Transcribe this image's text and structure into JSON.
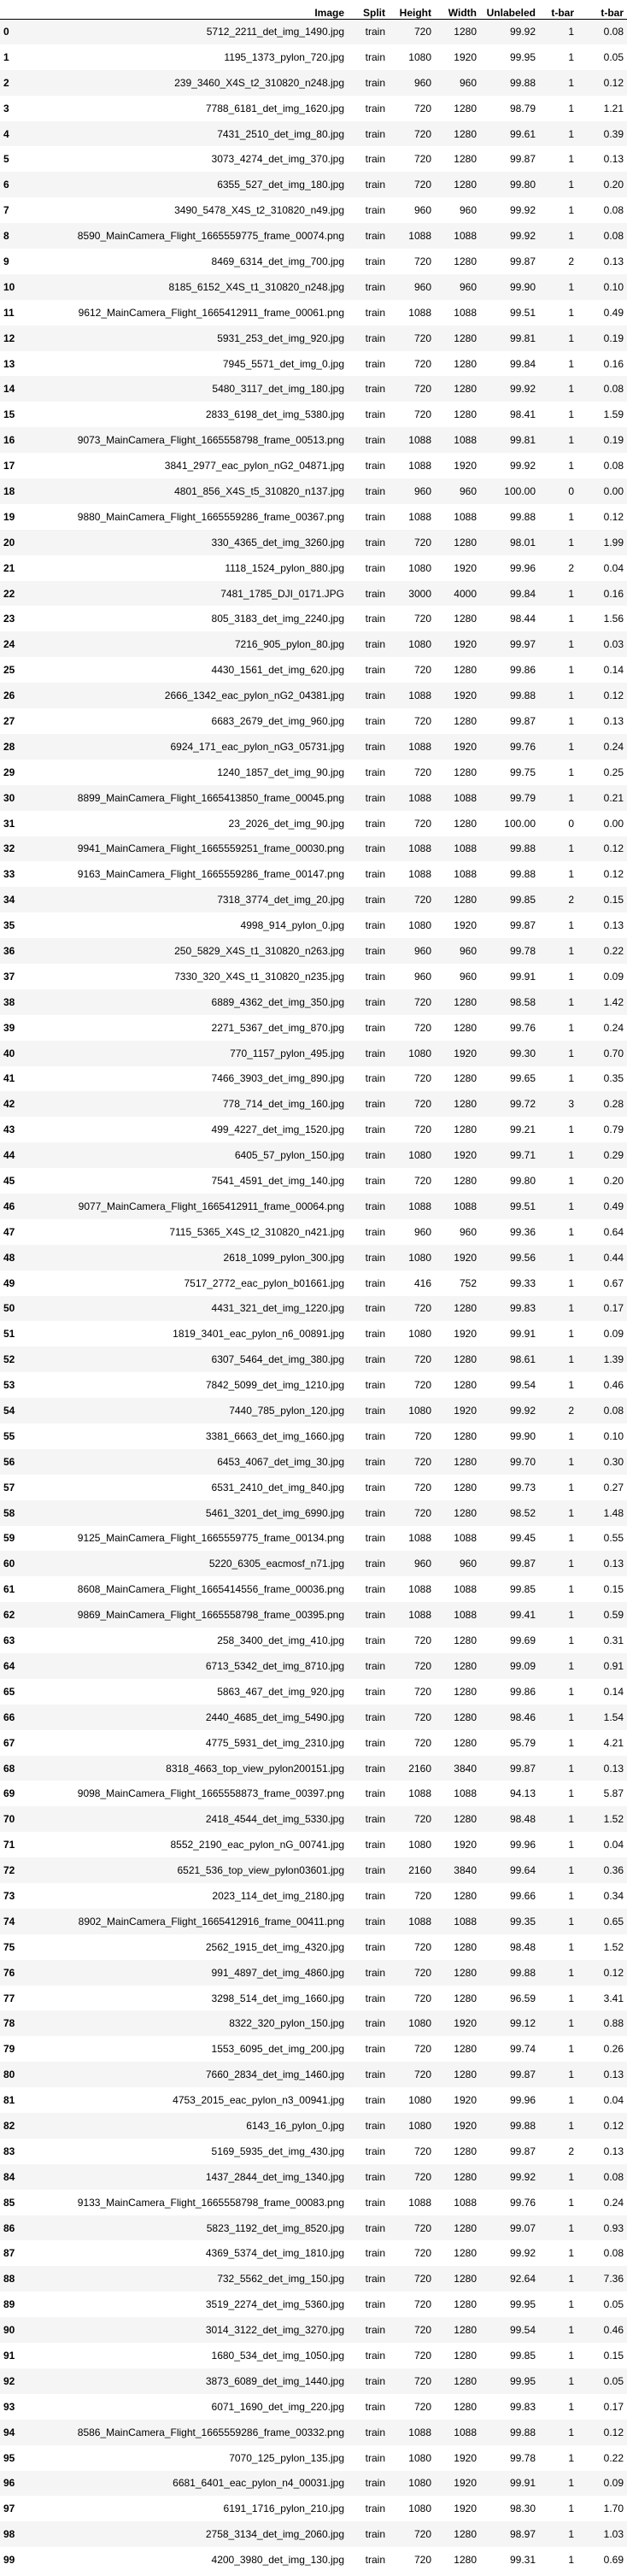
{
  "columns": [
    "",
    "Image",
    "Split",
    "Height",
    "Width",
    "Unlabeled",
    "t-bar",
    "t-bar"
  ],
  "rows": [
    [
      "0",
      "5712_2211_det_img_1490.jpg",
      "train",
      "720",
      "1280",
      "99.92",
      "1",
      "0.08"
    ],
    [
      "1",
      "1195_1373_pylon_720.jpg",
      "train",
      "1080",
      "1920",
      "99.95",
      "1",
      "0.05"
    ],
    [
      "2",
      "239_3460_X4S_t2_310820_n248.jpg",
      "train",
      "960",
      "960",
      "99.88",
      "1",
      "0.12"
    ],
    [
      "3",
      "7788_6181_det_img_1620.jpg",
      "train",
      "720",
      "1280",
      "98.79",
      "1",
      "1.21"
    ],
    [
      "4",
      "7431_2510_det_img_80.jpg",
      "train",
      "720",
      "1280",
      "99.61",
      "1",
      "0.39"
    ],
    [
      "5",
      "3073_4274_det_img_370.jpg",
      "train",
      "720",
      "1280",
      "99.87",
      "1",
      "0.13"
    ],
    [
      "6",
      "6355_527_det_img_180.jpg",
      "train",
      "720",
      "1280",
      "99.80",
      "1",
      "0.20"
    ],
    [
      "7",
      "3490_5478_X4S_t2_310820_n49.jpg",
      "train",
      "960",
      "960",
      "99.92",
      "1",
      "0.08"
    ],
    [
      "8",
      "8590_MainCamera_Flight_1665559775_frame_00074.png",
      "train",
      "1088",
      "1088",
      "99.92",
      "1",
      "0.08"
    ],
    [
      "9",
      "8469_6314_det_img_700.jpg",
      "train",
      "720",
      "1280",
      "99.87",
      "2",
      "0.13"
    ],
    [
      "10",
      "8185_6152_X4S_t1_310820_n248.jpg",
      "train",
      "960",
      "960",
      "99.90",
      "1",
      "0.10"
    ],
    [
      "11",
      "9612_MainCamera_Flight_1665412911_frame_00061.png",
      "train",
      "1088",
      "1088",
      "99.51",
      "1",
      "0.49"
    ],
    [
      "12",
      "5931_253_det_img_920.jpg",
      "train",
      "720",
      "1280",
      "99.81",
      "1",
      "0.19"
    ],
    [
      "13",
      "7945_5571_det_img_0.jpg",
      "train",
      "720",
      "1280",
      "99.84",
      "1",
      "0.16"
    ],
    [
      "14",
      "5480_3117_det_img_180.jpg",
      "train",
      "720",
      "1280",
      "99.92",
      "1",
      "0.08"
    ],
    [
      "15",
      "2833_6198_det_img_5380.jpg",
      "train",
      "720",
      "1280",
      "98.41",
      "1",
      "1.59"
    ],
    [
      "16",
      "9073_MainCamera_Flight_1665558798_frame_00513.png",
      "train",
      "1088",
      "1088",
      "99.81",
      "1",
      "0.19"
    ],
    [
      "17",
      "3841_2977_eac_pylon_nG2_04871.jpg",
      "train",
      "1088",
      "1920",
      "99.92",
      "1",
      "0.08"
    ],
    [
      "18",
      "4801_856_X4S_t5_310820_n137.jpg",
      "train",
      "960",
      "960",
      "100.00",
      "0",
      "0.00"
    ],
    [
      "19",
      "9880_MainCamera_Flight_1665559286_frame_00367.png",
      "train",
      "1088",
      "1088",
      "99.88",
      "1",
      "0.12"
    ],
    [
      "20",
      "330_4365_det_img_3260.jpg",
      "train",
      "720",
      "1280",
      "98.01",
      "1",
      "1.99"
    ],
    [
      "21",
      "1118_1524_pylon_880.jpg",
      "train",
      "1080",
      "1920",
      "99.96",
      "2",
      "0.04"
    ],
    [
      "22",
      "7481_1785_DJI_0171.JPG",
      "train",
      "3000",
      "4000",
      "99.84",
      "1",
      "0.16"
    ],
    [
      "23",
      "805_3183_det_img_2240.jpg",
      "train",
      "720",
      "1280",
      "98.44",
      "1",
      "1.56"
    ],
    [
      "24",
      "7216_905_pylon_80.jpg",
      "train",
      "1080",
      "1920",
      "99.97",
      "1",
      "0.03"
    ],
    [
      "25",
      "4430_1561_det_img_620.jpg",
      "train",
      "720",
      "1280",
      "99.86",
      "1",
      "0.14"
    ],
    [
      "26",
      "2666_1342_eac_pylon_nG2_04381.jpg",
      "train",
      "1088",
      "1920",
      "99.88",
      "1",
      "0.12"
    ],
    [
      "27",
      "6683_2679_det_img_960.jpg",
      "train",
      "720",
      "1280",
      "99.87",
      "1",
      "0.13"
    ],
    [
      "28",
      "6924_171_eac_pylon_nG3_05731.jpg",
      "train",
      "1088",
      "1920",
      "99.76",
      "1",
      "0.24"
    ],
    [
      "29",
      "1240_1857_det_img_90.jpg",
      "train",
      "720",
      "1280",
      "99.75",
      "1",
      "0.25"
    ],
    [
      "30",
      "8899_MainCamera_Flight_1665413850_frame_00045.png",
      "train",
      "1088",
      "1088",
      "99.79",
      "1",
      "0.21"
    ],
    [
      "31",
      "23_2026_det_img_90.jpg",
      "train",
      "720",
      "1280",
      "100.00",
      "0",
      "0.00"
    ],
    [
      "32",
      "9941_MainCamera_Flight_1665559251_frame_00030.png",
      "train",
      "1088",
      "1088",
      "99.88",
      "1",
      "0.12"
    ],
    [
      "33",
      "9163_MainCamera_Flight_1665559286_frame_00147.png",
      "train",
      "1088",
      "1088",
      "99.88",
      "1",
      "0.12"
    ],
    [
      "34",
      "7318_3774_det_img_20.jpg",
      "train",
      "720",
      "1280",
      "99.85",
      "2",
      "0.15"
    ],
    [
      "35",
      "4998_914_pylon_0.jpg",
      "train",
      "1080",
      "1920",
      "99.87",
      "1",
      "0.13"
    ],
    [
      "36",
      "250_5829_X4S_t1_310820_n263.jpg",
      "train",
      "960",
      "960",
      "99.78",
      "1",
      "0.22"
    ],
    [
      "37",
      "7330_320_X4S_t1_310820_n235.jpg",
      "train",
      "960",
      "960",
      "99.91",
      "1",
      "0.09"
    ],
    [
      "38",
      "6889_4362_det_img_350.jpg",
      "train",
      "720",
      "1280",
      "98.58",
      "1",
      "1.42"
    ],
    [
      "39",
      "2271_5367_det_img_870.jpg",
      "train",
      "720",
      "1280",
      "99.76",
      "1",
      "0.24"
    ],
    [
      "40",
      "770_1157_pylon_495.jpg",
      "train",
      "1080",
      "1920",
      "99.30",
      "1",
      "0.70"
    ],
    [
      "41",
      "7466_3903_det_img_890.jpg",
      "train",
      "720",
      "1280",
      "99.65",
      "1",
      "0.35"
    ],
    [
      "42",
      "778_714_det_img_160.jpg",
      "train",
      "720",
      "1280",
      "99.72",
      "3",
      "0.28"
    ],
    [
      "43",
      "499_4227_det_img_1520.jpg",
      "train",
      "720",
      "1280",
      "99.21",
      "1",
      "0.79"
    ],
    [
      "44",
      "6405_57_pylon_150.jpg",
      "train",
      "1080",
      "1920",
      "99.71",
      "1",
      "0.29"
    ],
    [
      "45",
      "7541_4591_det_img_140.jpg",
      "train",
      "720",
      "1280",
      "99.80",
      "1",
      "0.20"
    ],
    [
      "46",
      "9077_MainCamera_Flight_1665412911_frame_00064.png",
      "train",
      "1088",
      "1088",
      "99.51",
      "1",
      "0.49"
    ],
    [
      "47",
      "7115_5365_X4S_t2_310820_n421.jpg",
      "train",
      "960",
      "960",
      "99.36",
      "1",
      "0.64"
    ],
    [
      "48",
      "2618_1099_pylon_300.jpg",
      "train",
      "1080",
      "1920",
      "99.56",
      "1",
      "0.44"
    ],
    [
      "49",
      "7517_2772_eac_pylon_b01661.jpg",
      "train",
      "416",
      "752",
      "99.33",
      "1",
      "0.67"
    ],
    [
      "50",
      "4431_321_det_img_1220.jpg",
      "train",
      "720",
      "1280",
      "99.83",
      "1",
      "0.17"
    ],
    [
      "51",
      "1819_3401_eac_pylon_n6_00891.jpg",
      "train",
      "1080",
      "1920",
      "99.91",
      "1",
      "0.09"
    ],
    [
      "52",
      "6307_5464_det_img_380.jpg",
      "train",
      "720",
      "1280",
      "98.61",
      "1",
      "1.39"
    ],
    [
      "53",
      "7842_5099_det_img_1210.jpg",
      "train",
      "720",
      "1280",
      "99.54",
      "1",
      "0.46"
    ],
    [
      "54",
      "7440_785_pylon_120.jpg",
      "train",
      "1080",
      "1920",
      "99.92",
      "2",
      "0.08"
    ],
    [
      "55",
      "3381_6663_det_img_1660.jpg",
      "train",
      "720",
      "1280",
      "99.90",
      "1",
      "0.10"
    ],
    [
      "56",
      "6453_4067_det_img_30.jpg",
      "train",
      "720",
      "1280",
      "99.70",
      "1",
      "0.30"
    ],
    [
      "57",
      "6531_2410_det_img_840.jpg",
      "train",
      "720",
      "1280",
      "99.73",
      "1",
      "0.27"
    ],
    [
      "58",
      "5461_3201_det_img_6990.jpg",
      "train",
      "720",
      "1280",
      "98.52",
      "1",
      "1.48"
    ],
    [
      "59",
      "9125_MainCamera_Flight_1665559775_frame_00134.png",
      "train",
      "1088",
      "1088",
      "99.45",
      "1",
      "0.55"
    ],
    [
      "60",
      "5220_6305_eacmosf_n71.jpg",
      "train",
      "960",
      "960",
      "99.87",
      "1",
      "0.13"
    ],
    [
      "61",
      "8608_MainCamera_Flight_1665414556_frame_00036.png",
      "train",
      "1088",
      "1088",
      "99.85",
      "1",
      "0.15"
    ],
    [
      "62",
      "9869_MainCamera_Flight_1665558798_frame_00395.png",
      "train",
      "1088",
      "1088",
      "99.41",
      "1",
      "0.59"
    ],
    [
      "63",
      "258_3400_det_img_410.jpg",
      "train",
      "720",
      "1280",
      "99.69",
      "1",
      "0.31"
    ],
    [
      "64",
      "6713_5342_det_img_8710.jpg",
      "train",
      "720",
      "1280",
      "99.09",
      "1",
      "0.91"
    ],
    [
      "65",
      "5863_467_det_img_920.jpg",
      "train",
      "720",
      "1280",
      "99.86",
      "1",
      "0.14"
    ],
    [
      "66",
      "2440_4685_det_img_5490.jpg",
      "train",
      "720",
      "1280",
      "98.46",
      "1",
      "1.54"
    ],
    [
      "67",
      "4775_5931_det_img_2310.jpg",
      "train",
      "720",
      "1280",
      "95.79",
      "1",
      "4.21"
    ],
    [
      "68",
      "8318_4663_top_view_pylon200151.jpg",
      "train",
      "2160",
      "3840",
      "99.87",
      "1",
      "0.13"
    ],
    [
      "69",
      "9098_MainCamera_Flight_1665558873_frame_00397.png",
      "train",
      "1088",
      "1088",
      "94.13",
      "1",
      "5.87"
    ],
    [
      "70",
      "2418_4544_det_img_5330.jpg",
      "train",
      "720",
      "1280",
      "98.48",
      "1",
      "1.52"
    ],
    [
      "71",
      "8552_2190_eac_pylon_nG_00741.jpg",
      "train",
      "1080",
      "1920",
      "99.96",
      "1",
      "0.04"
    ],
    [
      "72",
      "6521_536_top_view_pylon03601.jpg",
      "train",
      "2160",
      "3840",
      "99.64",
      "1",
      "0.36"
    ],
    [
      "73",
      "2023_114_det_img_2180.jpg",
      "train",
      "720",
      "1280",
      "99.66",
      "1",
      "0.34"
    ],
    [
      "74",
      "8902_MainCamera_Flight_1665412916_frame_00411.png",
      "train",
      "1088",
      "1088",
      "99.35",
      "1",
      "0.65"
    ],
    [
      "75",
      "2562_1915_det_img_4320.jpg",
      "train",
      "720",
      "1280",
      "98.48",
      "1",
      "1.52"
    ],
    [
      "76",
      "991_4897_det_img_4860.jpg",
      "train",
      "720",
      "1280",
      "99.88",
      "1",
      "0.12"
    ],
    [
      "77",
      "3298_514_det_img_1660.jpg",
      "train",
      "720",
      "1280",
      "96.59",
      "1",
      "3.41"
    ],
    [
      "78",
      "8322_320_pylon_150.jpg",
      "train",
      "1080",
      "1920",
      "99.12",
      "1",
      "0.88"
    ],
    [
      "79",
      "1553_6095_det_img_200.jpg",
      "train",
      "720",
      "1280",
      "99.74",
      "1",
      "0.26"
    ],
    [
      "80",
      "7660_2834_det_img_1460.jpg",
      "train",
      "720",
      "1280",
      "99.87",
      "1",
      "0.13"
    ],
    [
      "81",
      "4753_2015_eac_pylon_n3_00941.jpg",
      "train",
      "1080",
      "1920",
      "99.96",
      "1",
      "0.04"
    ],
    [
      "82",
      "6143_16_pylon_0.jpg",
      "train",
      "1080",
      "1920",
      "99.88",
      "1",
      "0.12"
    ],
    [
      "83",
      "5169_5935_det_img_430.jpg",
      "train",
      "720",
      "1280",
      "99.87",
      "2",
      "0.13"
    ],
    [
      "84",
      "1437_2844_det_img_1340.jpg",
      "train",
      "720",
      "1280",
      "99.92",
      "1",
      "0.08"
    ],
    [
      "85",
      "9133_MainCamera_Flight_1665558798_frame_00083.png",
      "train",
      "1088",
      "1088",
      "99.76",
      "1",
      "0.24"
    ],
    [
      "86",
      "5823_1192_det_img_8520.jpg",
      "train",
      "720",
      "1280",
      "99.07",
      "1",
      "0.93"
    ],
    [
      "87",
      "4369_5374_det_img_1810.jpg",
      "train",
      "720",
      "1280",
      "99.92",
      "1",
      "0.08"
    ],
    [
      "88",
      "732_5562_det_img_150.jpg",
      "train",
      "720",
      "1280",
      "92.64",
      "1",
      "7.36"
    ],
    [
      "89",
      "3519_2274_det_img_5360.jpg",
      "train",
      "720",
      "1280",
      "99.95",
      "1",
      "0.05"
    ],
    [
      "90",
      "3014_3122_det_img_3270.jpg",
      "train",
      "720",
      "1280",
      "99.54",
      "1",
      "0.46"
    ],
    [
      "91",
      "1680_534_det_img_1050.jpg",
      "train",
      "720",
      "1280",
      "99.85",
      "1",
      "0.15"
    ],
    [
      "92",
      "3873_6089_det_img_1440.jpg",
      "train",
      "720",
      "1280",
      "99.95",
      "1",
      "0.05"
    ],
    [
      "93",
      "6071_1690_det_img_220.jpg",
      "train",
      "720",
      "1280",
      "99.83",
      "1",
      "0.17"
    ],
    [
      "94",
      "8586_MainCamera_Flight_1665559286_frame_00332.png",
      "train",
      "1088",
      "1088",
      "99.88",
      "1",
      "0.12"
    ],
    [
      "95",
      "7070_125_pylon_135.jpg",
      "train",
      "1080",
      "1920",
      "99.78",
      "1",
      "0.22"
    ],
    [
      "96",
      "6681_6401_eac_pylon_n4_00031.jpg",
      "train",
      "1080",
      "1920",
      "99.91",
      "1",
      "0.09"
    ],
    [
      "97",
      "6191_1716_pylon_210.jpg",
      "train",
      "1080",
      "1920",
      "98.30",
      "1",
      "1.70"
    ],
    [
      "98",
      "2758_3134_det_img_2060.jpg",
      "train",
      "720",
      "1280",
      "98.97",
      "1",
      "1.03"
    ],
    [
      "99",
      "4200_3980_det_img_130.jpg",
      "train",
      "720",
      "1280",
      "99.31",
      "1",
      "0.69"
    ]
  ]
}
